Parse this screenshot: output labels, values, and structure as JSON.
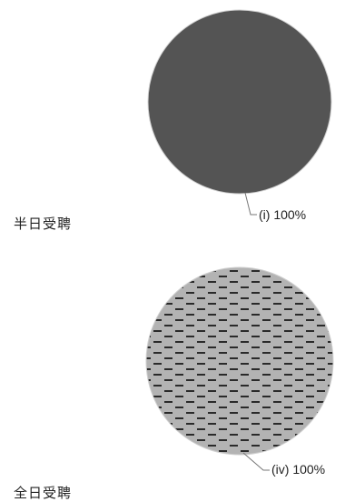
{
  "chart_data": [
    {
      "type": "pie",
      "title": "半日受聘",
      "slices": [
        {
          "label": "(i) 100%",
          "value": 100,
          "color": "#545454",
          "pattern": "solid"
        }
      ]
    },
    {
      "type": "pie",
      "title": "全日受聘",
      "slices": [
        {
          "label": "(iv) 100%",
          "value": 100,
          "color": "#b3b3b3",
          "pattern": "dashes"
        }
      ]
    }
  ]
}
